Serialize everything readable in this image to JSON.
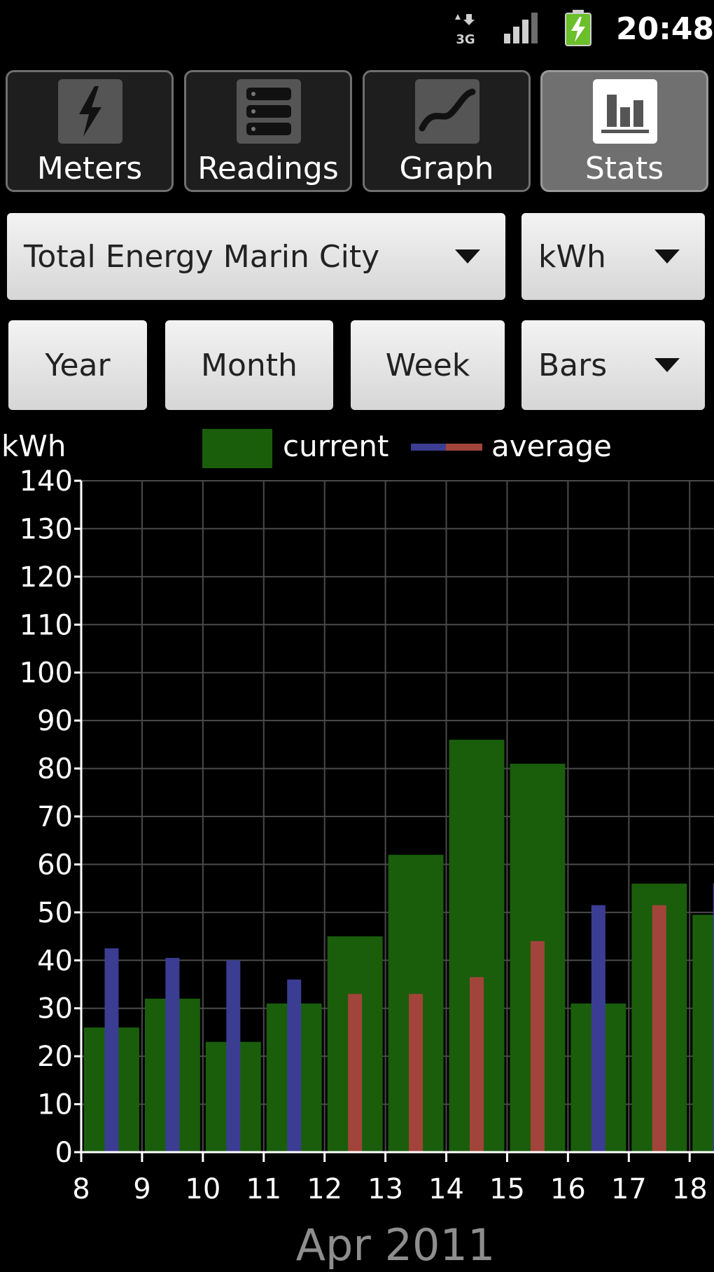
{
  "status_bar": {
    "time": "20:48",
    "data_icon": "3g-data-icon",
    "network_label": "3G",
    "signal_icon": "signal-strength-icon",
    "battery_icon": "battery-charging-icon"
  },
  "tabs": [
    {
      "label": "Meters",
      "icon": "lightning-icon",
      "active": false
    },
    {
      "label": "Readings",
      "icon": "list-icon",
      "active": false
    },
    {
      "label": "Graph",
      "icon": "graph-line-icon",
      "active": false
    },
    {
      "label": "Stats",
      "icon": "bar-chart-icon",
      "active": true
    }
  ],
  "controls": {
    "meter_select": "Total Energy Marin City",
    "unit_select": "kWh",
    "year_button": "Year",
    "month_button": "Month",
    "week_button": "Week",
    "style_select": "Bars"
  },
  "legend": {
    "unit": "kWh",
    "current": "current",
    "average": "average"
  },
  "colors": {
    "current": "#1a5e0b",
    "average_blue": "#3b3d93",
    "average_red": "#a2443b",
    "grid": "#4a4a4a",
    "axis": "#ffffff",
    "month_label": "#8e8e8e"
  },
  "chart_data": {
    "type": "bar",
    "title": "",
    "xlabel": "Apr 2011",
    "ylabel": "kWh",
    "x": [
      8,
      9,
      10,
      11,
      12,
      13,
      14,
      15,
      16,
      17,
      18
    ],
    "xlim": [
      8,
      18.4
    ],
    "ylim": [
      0,
      140
    ],
    "yticks": [
      0,
      10,
      20,
      30,
      40,
      50,
      60,
      70,
      80,
      90,
      100,
      110,
      120,
      130,
      140
    ],
    "grid": true,
    "legend_position": "top",
    "series": [
      {
        "name": "current",
        "values": [
          26,
          32,
          23,
          31,
          45,
          62,
          86,
          81,
          31,
          56,
          49.5
        ]
      },
      {
        "name": "average",
        "values": [
          42.5,
          40.5,
          40,
          36,
          33,
          33,
          36.5,
          44,
          51.5,
          51.5,
          56
        ],
        "segment_colors": [
          "blue",
          "blue",
          "blue",
          "blue",
          "red",
          "red",
          "red",
          "red",
          "blue",
          "red",
          "blue"
        ]
      }
    ]
  },
  "month_label": "Apr 2011"
}
